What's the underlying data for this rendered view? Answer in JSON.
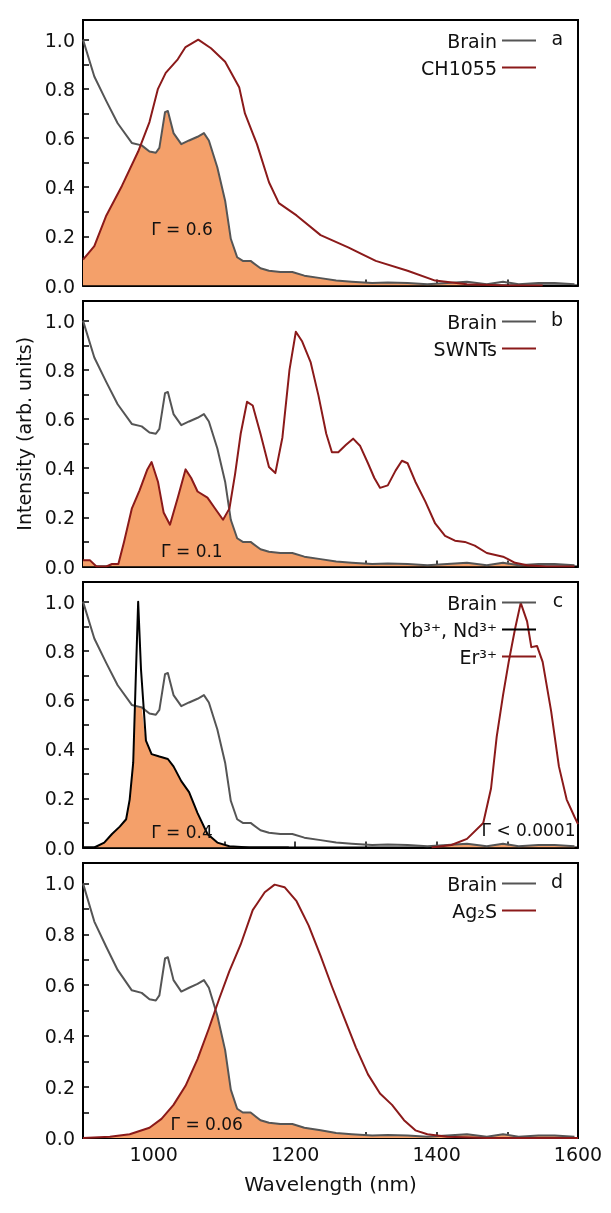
{
  "chart_data": [
    {
      "type": "line",
      "tick_labels": "y",
      "legend": "top right",
      "xlim": [
        900,
        1600
      ],
      "ylim": [
        0,
        1.08
      ],
      "xticks": [
        1000,
        {
          "value": 1100,
          "label": null
        },
        1200,
        {
          "value": 1300,
          "label": null
        },
        1400,
        {
          "value": 1500,
          "label": null
        },
        1600
      ],
      "yticks": [
        {
          "value": 0,
          "label": "0.0"
        },
        {
          "value": 0.1,
          "label": null
        },
        0.2,
        {
          "value": 0.3,
          "label": null
        },
        0.4,
        {
          "value": 0.5,
          "label": null
        },
        0.6,
        {
          "value": 0.7,
          "label": null
        },
        0.8,
        {
          "value": 0.9,
          "label": null
        },
        {
          "value": 1,
          "label": "1.0"
        }
      ],
      "annotations": [
        "a",
        "Γ = 0.6"
      ],
      "series": [
        {
          "type": "area",
          "color": "#f4a06a",
          "x": [
            900,
            916,
            933,
            955,
            980,
            983,
            994,
            1003,
            1008,
            1016,
            1020,
            1028,
            1039,
            1050,
            1062,
            1071,
            1078,
            1090,
            1101,
            1109,
            1118,
            1126,
            1137,
            1151,
            1163,
            1179,
            1196,
            1213,
            1236,
            1258,
            1280,
            1309,
            1331,
            1359,
            1387,
            1415,
            1443,
            1471,
            1499,
            1550
          ],
          "values": [
            0.105,
            0.16,
            0.285,
            0.405,
            0.56,
            0.57,
            0.545,
            0.54,
            0.56,
            0.705,
            0.71,
            0.62,
            0.575,
            0.59,
            0.605,
            0.62,
            0.59,
            0.48,
            0.345,
            0.19,
            0.115,
            0.1,
            0.1,
            0.07,
            0.06,
            0.055,
            0.055,
            0.04,
            0.03,
            0.02,
            0.015,
            0.01,
            0.012,
            0.01,
            0.005,
            0.01,
            0.005,
            0,
            0,
            0
          ]
        },
        {
          "name": "Brain",
          "color": "#555555",
          "x": [
            900,
            916,
            933,
            949,
            969,
            983,
            994,
            1003,
            1008,
            1016,
            1020,
            1028,
            1039,
            1050,
            1062,
            1071,
            1078,
            1090,
            1101,
            1109,
            1118,
            1126,
            1137,
            1151,
            1163,
            1179,
            1196,
            1213,
            1236,
            1258,
            1280,
            1309,
            1331,
            1359,
            1387,
            1415,
            1443,
            1471,
            1494,
            1516,
            1544,
            1567,
            1595
          ],
          "values": [
            1.0,
            0.85,
            0.75,
            0.66,
            0.58,
            0.57,
            0.545,
            0.54,
            0.56,
            0.705,
            0.71,
            0.62,
            0.575,
            0.59,
            0.605,
            0.62,
            0.59,
            0.48,
            0.345,
            0.19,
            0.115,
            0.1,
            0.1,
            0.07,
            0.06,
            0.055,
            0.055,
            0.04,
            0.03,
            0.02,
            0.015,
            0.01,
            0.012,
            0.01,
            0.005,
            0.01,
            0.015,
            0.005,
            0.015,
            0.005,
            0.01,
            0.01,
            0.005
          ]
        },
        {
          "name": "CH1055",
          "color": "#8b1a1a",
          "x": [
            900,
            916,
            933,
            955,
            978,
            994,
            1006,
            1017,
            1034,
            1045,
            1063,
            1081,
            1101,
            1121,
            1129,
            1146,
            1163,
            1177,
            1202,
            1236,
            1275,
            1314,
            1359,
            1398,
            1443,
            1499,
            1550
          ],
          "values": [
            0.105,
            0.16,
            0.285,
            0.405,
            0.545,
            0.665,
            0.8,
            0.865,
            0.92,
            0.97,
            1.0,
            0.965,
            0.91,
            0.805,
            0.7,
            0.575,
            0.42,
            0.335,
            0.285,
            0.205,
            0.155,
            0.1,
            0.06,
            0.02,
            0.005,
            0,
            0
          ]
        }
      ]
    },
    {
      "type": "line",
      "tick_labels": "y",
      "legend": "top right",
      "ylabel": "Intensity (arb. units)",
      "xlim": [
        900,
        1600
      ],
      "ylim": [
        0,
        1.08
      ],
      "xticks": [
        1000,
        {
          "value": 1100,
          "label": null
        },
        1200,
        {
          "value": 1300,
          "label": null
        },
        1400,
        {
          "value": 1500,
          "label": null
        },
        1600
      ],
      "yticks": [
        {
          "value": 0,
          "label": "0.0"
        },
        {
          "value": 0.1,
          "label": null
        },
        0.2,
        {
          "value": 0.3,
          "label": null
        },
        0.4,
        {
          "value": 0.5,
          "label": null
        },
        0.6,
        {
          "value": 0.7,
          "label": null
        },
        0.8,
        {
          "value": 0.9,
          "label": null
        },
        {
          "value": 1,
          "label": "1.0"
        }
      ],
      "annotations": [
        "b",
        "Γ = 0.1"
      ],
      "series": [
        {
          "type": "area",
          "color": "#f4a06a",
          "x": [
            900,
            910,
            919,
            933,
            941,
            950,
            958,
            969,
            980,
            991,
            997,
            1006,
            1014,
            1023,
            1034,
            1045,
            1053,
            1062,
            1076,
            1087,
            1098,
            1106,
            1109,
            1118,
            1126,
            1137,
            1151,
            1163,
            1179,
            1196,
            1213,
            1236,
            1258,
            1280,
            1309,
            1331,
            1359,
            1387,
            1415,
            1443,
            1471,
            1494,
            1511,
            1528,
            1555,
            1595
          ],
          "values": [
            0.025,
            0.025,
            0,
            0,
            0.01,
            0.01,
            0.1,
            0.235,
            0.31,
            0.395,
            0.425,
            0.345,
            0.22,
            0.17,
            0.28,
            0.395,
            0.36,
            0.305,
            0.28,
            0.235,
            0.19,
            0.22,
            0.19,
            0.115,
            0.1,
            0.1,
            0.07,
            0.06,
            0.055,
            0.055,
            0.04,
            0.03,
            0.02,
            0.015,
            0.01,
            0.012,
            0.01,
            0.005,
            0.01,
            0.015,
            0.005,
            0.015,
            0.015,
            0.005,
            0,
            0
          ]
        },
        {
          "name": "Brain",
          "color": "#555555",
          "x": [
            900,
            916,
            933,
            949,
            969,
            983,
            994,
            1003,
            1008,
            1016,
            1020,
            1028,
            1039,
            1050,
            1062,
            1071,
            1078,
            1090,
            1101,
            1109,
            1118,
            1126,
            1137,
            1151,
            1163,
            1179,
            1196,
            1213,
            1236,
            1258,
            1280,
            1309,
            1331,
            1359,
            1387,
            1415,
            1443,
            1471,
            1494,
            1516,
            1544,
            1567,
            1595
          ],
          "values": [
            1.0,
            0.85,
            0.75,
            0.66,
            0.58,
            0.57,
            0.545,
            0.54,
            0.56,
            0.705,
            0.71,
            0.62,
            0.575,
            0.59,
            0.605,
            0.62,
            0.59,
            0.48,
            0.345,
            0.19,
            0.115,
            0.1,
            0.1,
            0.07,
            0.06,
            0.055,
            0.055,
            0.04,
            0.03,
            0.02,
            0.015,
            0.01,
            0.012,
            0.01,
            0.005,
            0.01,
            0.015,
            0.005,
            0.015,
            0.005,
            0.01,
            0.01,
            0.005
          ]
        },
        {
          "name": "SWNTs",
          "color": "#8b1a1a",
          "x": [
            900,
            910,
            919,
            933,
            941,
            950,
            958,
            969,
            980,
            991,
            997,
            1006,
            1014,
            1023,
            1034,
            1045,
            1053,
            1062,
            1076,
            1087,
            1098,
            1107,
            1115,
            1123,
            1132,
            1140,
            1151,
            1163,
            1172,
            1182,
            1192,
            1201,
            1210,
            1222,
            1233,
            1244,
            1252,
            1261,
            1272,
            1282,
            1292,
            1303,
            1312,
            1320,
            1331,
            1342,
            1351,
            1359,
            1370,
            1384,
            1398,
            1412,
            1426,
            1440,
            1454,
            1471,
            1494,
            1511,
            1528,
            1555,
            1595
          ],
          "values": [
            0.025,
            0.025,
            0,
            0,
            0.01,
            0.01,
            0.1,
            0.235,
            0.31,
            0.395,
            0.425,
            0.345,
            0.22,
            0.17,
            0.28,
            0.395,
            0.36,
            0.305,
            0.28,
            0.235,
            0.19,
            0.235,
            0.375,
            0.54,
            0.67,
            0.655,
            0.54,
            0.405,
            0.38,
            0.525,
            0.8,
            0.955,
            0.915,
            0.83,
            0.695,
            0.54,
            0.465,
            0.465,
            0.495,
            0.52,
            0.49,
            0.42,
            0.36,
            0.32,
            0.33,
            0.39,
            0.43,
            0.42,
            0.345,
            0.265,
            0.175,
            0.125,
            0.105,
            0.1,
            0.085,
            0.055,
            0.04,
            0.015,
            0.005,
            0,
            0
          ]
        }
      ]
    },
    {
      "type": "line",
      "tick_labels": "y",
      "legend": "top right",
      "xlim": [
        900,
        1600
      ],
      "ylim": [
        0,
        1.08
      ],
      "xticks": [
        1000,
        {
          "value": 1100,
          "label": null
        },
        1200,
        {
          "value": 1300,
          "label": null
        },
        1400,
        {
          "value": 1500,
          "label": null
        },
        1600
      ],
      "yticks": [
        {
          "value": 0,
          "label": "0.0"
        },
        {
          "value": 0.1,
          "label": null
        },
        0.2,
        {
          "value": 0.3,
          "label": null
        },
        0.4,
        {
          "value": 0.5,
          "label": null
        },
        0.6,
        {
          "value": 0.7,
          "label": null
        },
        0.8,
        {
          "value": 0.9,
          "label": null
        },
        {
          "value": 1,
          "label": "1.0"
        }
      ],
      "annotations": [
        "c",
        "Γ = 0.4",
        "Γ < 0.0001"
      ],
      "series": [
        {
          "type": "area",
          "color": "#f4a06a",
          "x": [
            900,
            916,
            930,
            941,
            952,
            961,
            966,
            971,
            973,
            983,
            987,
            989,
            997,
            1008,
            1020,
            1028,
            1039,
            1050,
            1062,
            1076,
            1090,
            1107,
            1135,
            1300,
            1393,
            1421,
            1443,
            1471,
            1494,
            1516,
            1544,
            1567,
            1595
          ],
          "values": [
            0,
            0,
            0.02,
            0.055,
            0.085,
            0.115,
            0.195,
            0.345,
            0.575,
            0.575,
            0.47,
            0.435,
            0.38,
            0.37,
            0.36,
            0.33,
            0.27,
            0.225,
            0.14,
            0.055,
            0.02,
            0.005,
            0,
            null,
            0,
            0.01,
            0.015,
            0.005,
            0.015,
            0.005,
            0.01,
            0.01,
            0.005
          ]
        },
        {
          "name": "Brain",
          "color": "#555555",
          "x": [
            900,
            916,
            933,
            949,
            969,
            983,
            994,
            1003,
            1008,
            1016,
            1020,
            1028,
            1039,
            1050,
            1062,
            1071,
            1078,
            1090,
            1101,
            1109,
            1118,
            1126,
            1137,
            1151,
            1163,
            1179,
            1196,
            1213,
            1236,
            1258,
            1280,
            1309,
            1331,
            1359,
            1387,
            1415,
            1443,
            1471,
            1494,
            1516,
            1544,
            1567,
            1595
          ],
          "values": [
            1.0,
            0.85,
            0.75,
            0.66,
            0.58,
            0.57,
            0.545,
            0.54,
            0.56,
            0.705,
            0.71,
            0.62,
            0.575,
            0.59,
            0.605,
            0.62,
            0.59,
            0.48,
            0.345,
            0.19,
            0.115,
            0.1,
            0.1,
            0.07,
            0.06,
            0.055,
            0.055,
            0.04,
            0.03,
            0.02,
            0.015,
            0.01,
            0.012,
            0.01,
            0.005,
            0.01,
            0.015,
            0.005,
            0.015,
            0.005,
            0.01,
            0.01,
            0.005
          ]
        },
        {
          "name": "Yb³⁺, Nd³⁺",
          "color": "#000000",
          "x": [
            900,
            916,
            930,
            941,
            952,
            961,
            966,
            971,
            975,
            978,
            982,
            989,
            997,
            1008,
            1020,
            1028,
            1039,
            1050,
            1062,
            1076,
            1090,
            1107,
            1135,
            1191
          ],
          "values": [
            0,
            0,
            0.02,
            0.055,
            0.085,
            0.115,
            0.195,
            0.345,
            0.725,
            1.0,
            0.725,
            0.435,
            0.38,
            0.37,
            0.36,
            0.33,
            0.27,
            0.225,
            0.14,
            0.055,
            0.02,
            0.005,
            0,
            0
          ]
        },
        {
          "name": "Er³⁺",
          "color": "#8b1a1a",
          "x": [
            1393,
            1421,
            1443,
            1466,
            1477,
            1485,
            1494,
            1502,
            1511,
            1519,
            1528,
            1534,
            1542,
            1550,
            1562,
            1573,
            1584,
            1595,
            1600
          ],
          "values": [
            0,
            0.01,
            0.035,
            0.1,
            0.24,
            0.45,
            0.62,
            0.755,
            0.89,
            0.995,
            0.92,
            0.815,
            0.82,
            0.755,
            0.555,
            0.33,
            0.195,
            0.125,
            0.095
          ]
        }
      ]
    },
    {
      "type": "line",
      "legend": "top right",
      "xlabel": "Wavelength (nm)",
      "xlim": [
        900,
        1600
      ],
      "ylim": [
        0,
        1.08
      ],
      "xticks": [
        1000,
        {
          "value": 1100,
          "label": null
        },
        1200,
        {
          "value": 1300,
          "label": null
        },
        1400,
        {
          "value": 1500,
          "label": null
        },
        1600
      ],
      "yticks": [
        {
          "value": 0,
          "label": "0.0"
        },
        {
          "value": 0.1,
          "label": null
        },
        0.2,
        {
          "value": 0.3,
          "label": null
        },
        0.4,
        {
          "value": 0.5,
          "label": null
        },
        0.6,
        {
          "value": 0.7,
          "label": null
        },
        0.8,
        {
          "value": 0.9,
          "label": null
        },
        {
          "value": 1,
          "label": "1.0"
        }
      ],
      "annotations": [
        "d",
        "Γ = 0.06"
      ],
      "series": [
        {
          "type": "area",
          "color": "#f4a06a",
          "x": [
            900,
            938,
            966,
            994,
            1011,
            1028,
            1045,
            1062,
            1078,
            1087,
            1090,
            1101,
            1109,
            1118,
            1126,
            1137,
            1151,
            1163,
            1179,
            1196,
            1213,
            1236,
            1258,
            1280,
            1309,
            1331,
            1359,
            1387,
            1415,
            1443,
            1471,
            1494,
            1516,
            1544,
            1567,
            1595
          ],
          "values": [
            0,
            0.005,
            0.015,
            0.04,
            0.075,
            0.13,
            0.205,
            0.31,
            0.43,
            0.5,
            0.48,
            0.345,
            0.19,
            0.115,
            0.1,
            0.1,
            0.07,
            0.06,
            0.055,
            0.055,
            0.04,
            0.03,
            0.02,
            0.015,
            0.01,
            0.012,
            0.01,
            0.005,
            0.01,
            0.015,
            0.005,
            0.015,
            0.005,
            0.01,
            0.01,
            0.005
          ]
        },
        {
          "name": "Brain",
          "color": "#555555",
          "x": [
            900,
            916,
            933,
            949,
            969,
            983,
            994,
            1003,
            1008,
            1016,
            1020,
            1028,
            1039,
            1050,
            1062,
            1071,
            1078,
            1090,
            1101,
            1109,
            1118,
            1126,
            1137,
            1151,
            1163,
            1179,
            1196,
            1213,
            1236,
            1258,
            1280,
            1309,
            1331,
            1359,
            1387,
            1415,
            1443,
            1471,
            1494,
            1516,
            1544,
            1567,
            1595
          ],
          "values": [
            1.0,
            0.85,
            0.75,
            0.66,
            0.58,
            0.57,
            0.545,
            0.54,
            0.56,
            0.705,
            0.71,
            0.62,
            0.575,
            0.59,
            0.605,
            0.62,
            0.59,
            0.48,
            0.345,
            0.19,
            0.115,
            0.1,
            0.1,
            0.07,
            0.06,
            0.055,
            0.055,
            0.04,
            0.03,
            0.02,
            0.015,
            0.01,
            0.012,
            0.01,
            0.005,
            0.01,
            0.015,
            0.005,
            0.015,
            0.005,
            0.01,
            0.01,
            0.005
          ]
        },
        {
          "name": "Ag₂S",
          "color": "#8b1a1a",
          "x": [
            900,
            938,
            966,
            994,
            1011,
            1028,
            1045,
            1062,
            1078,
            1093,
            1107,
            1123,
            1140,
            1157,
            1171,
            1185,
            1202,
            1219,
            1236,
            1252,
            1269,
            1286,
            1303,
            1320,
            1337,
            1354,
            1370,
            1387,
            1415,
            1471,
            1600
          ],
          "values": [
            0,
            0.005,
            0.015,
            0.04,
            0.075,
            0.13,
            0.205,
            0.31,
            0.43,
            0.55,
            0.655,
            0.76,
            0.895,
            0.965,
            0.995,
            0.985,
            0.93,
            0.835,
            0.715,
            0.595,
            0.475,
            0.355,
            0.25,
            0.175,
            0.13,
            0.07,
            0.03,
            0.015,
            0.005,
            0,
            0
          ]
        }
      ]
    }
  ]
}
